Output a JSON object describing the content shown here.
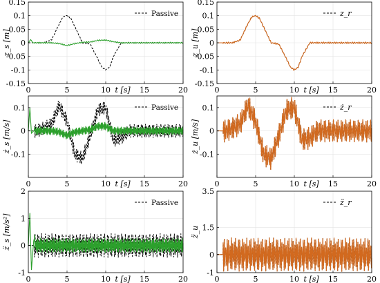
{
  "chart_data": [
    {
      "type": "line",
      "ylabel": "z_s [m]",
      "xlabel": "t [s]",
      "xlim": [
        0,
        20
      ],
      "ylim": [
        -0.15,
        0.15
      ],
      "xticks": [
        "0",
        "5",
        "10",
        "15",
        "20"
      ],
      "yticks": [
        "0.15",
        "0.1",
        "0.05",
        "0",
        "-0.05",
        "-0.1",
        "-0.15"
      ],
      "legend": "top-right",
      "series": [
        {
          "name": "Passive",
          "style": "dashed",
          "color": "#000000",
          "x": [
            0,
            1,
            2,
            3,
            4,
            4.5,
            5,
            5.5,
            6,
            7,
            8,
            9,
            9.5,
            10,
            10.5,
            11,
            12,
            13,
            14,
            15,
            16,
            17,
            18,
            19,
            20
          ],
          "values": [
            0,
            0,
            0,
            0.01,
            0.07,
            0.095,
            0.1,
            0.09,
            0.06,
            0.0,
            -0.005,
            -0.06,
            -0.09,
            -0.1,
            -0.09,
            -0.05,
            0,
            0,
            0,
            0,
            0,
            0,
            0,
            0,
            0
          ]
        },
        {
          "name": "",
          "style": "solid",
          "color": "#2ca02c",
          "x": [
            0,
            0.3,
            0.6,
            1,
            2,
            3,
            4,
            5,
            6,
            7,
            8,
            9,
            10,
            11,
            12,
            13,
            14,
            15,
            16,
            17,
            18,
            19,
            20
          ],
          "values": [
            0,
            0.012,
            0,
            0,
            0,
            0,
            -0.003,
            -0.01,
            -0.003,
            0.002,
            0.003,
            0.009,
            0.01,
            0.004,
            0,
            0,
            0,
            0,
            0,
            0,
            0,
            0,
            0
          ]
        }
      ]
    },
    {
      "type": "line",
      "ylabel": "z_u [m]",
      "xlabel": "t [s]",
      "xlim": [
        0,
        20
      ],
      "ylim": [
        -0.15,
        0.15
      ],
      "xticks": [
        "0",
        "5",
        "10",
        "15",
        "20"
      ],
      "yticks": [
        "0.15",
        "0.1",
        "0.05",
        "0",
        "-0.05",
        "-0.1",
        "-0.15"
      ],
      "legend": "top-right",
      "series": [
        {
          "name": "z_r",
          "style": "dashed",
          "color": "#000000",
          "x": [
            0,
            1,
            2,
            3,
            4,
            4.5,
            5,
            5.5,
            6,
            7,
            8,
            9,
            9.5,
            10,
            10.5,
            11,
            12,
            13,
            14,
            15,
            16,
            17,
            18,
            19,
            20
          ],
          "values": [
            0,
            0,
            0,
            0.01,
            0.07,
            0.095,
            0.1,
            0.09,
            0.06,
            0.0,
            -0.005,
            -0.06,
            -0.09,
            -0.1,
            -0.09,
            -0.05,
            0,
            0,
            0,
            0,
            0,
            0,
            0,
            0,
            0
          ]
        },
        {
          "name": "",
          "style": "solid",
          "color": "#d2691e",
          "x": [
            0,
            1,
            2,
            3,
            4,
            4.5,
            5,
            5.5,
            6,
            7,
            8,
            9,
            9.5,
            10,
            10.5,
            11,
            12,
            13,
            14,
            15,
            16,
            17,
            18,
            19,
            20
          ],
          "values": [
            0,
            0,
            0,
            0.01,
            0.07,
            0.095,
            0.1,
            0.09,
            0.06,
            0.0,
            -0.005,
            -0.06,
            -0.09,
            -0.1,
            -0.09,
            -0.05,
            0,
            0,
            0,
            0,
            0,
            0,
            0,
            0,
            0
          ]
        }
      ]
    },
    {
      "type": "line",
      "ylabel": "ż_s [m/s]",
      "xlabel": "t [s]",
      "xlim": [
        0,
        20
      ],
      "ylim": [
        -0.2,
        0.15
      ],
      "xticks": [
        "0",
        "5",
        "10",
        "15",
        "20"
      ],
      "yticks": [
        "0.1",
        "0",
        "-0.1"
      ],
      "legend": "top-right",
      "series": [
        {
          "name": "Passive",
          "style": "dashed",
          "color": "#000000",
          "x": [
            0,
            1,
            2,
            3,
            4,
            5,
            6,
            7,
            8,
            9,
            10,
            11,
            12,
            13,
            14,
            15,
            16,
            17,
            18,
            19,
            20
          ],
          "values": [
            0,
            0,
            0.01,
            0.03,
            0.11,
            0.04,
            -0.1,
            -0.12,
            -0.02,
            0.09,
            0.1,
            -0.04,
            -0.03,
            0,
            0,
            0,
            0,
            0,
            0,
            0,
            0
          ]
        },
        {
          "name": "",
          "style": "solid",
          "color": "#2ca02c",
          "x": [
            0,
            0.2,
            0.4,
            0.7,
            1,
            2,
            3,
            4,
            5,
            6,
            7,
            8,
            9,
            10,
            11,
            12,
            13,
            14,
            15,
            16,
            17,
            18,
            19,
            20
          ],
          "values": [
            0,
            0.1,
            -0.01,
            0,
            0,
            0,
            0,
            -0.005,
            -0.02,
            -0.005,
            0,
            0.005,
            0.02,
            0.02,
            0,
            0,
            0,
            0,
            0,
            0,
            0,
            0,
            0,
            0
          ]
        }
      ]
    },
    {
      "type": "line",
      "ylabel": "ż_u [m/s]",
      "xlabel": "t [s]",
      "xlim": [
        0,
        20
      ],
      "ylim": [
        -0.2,
        0.15
      ],
      "xticks": [
        "0",
        "5",
        "10",
        "15",
        "20"
      ],
      "yticks": [
        "0.1",
        "0",
        "-0.1"
      ],
      "legend": "top-right",
      "series": [
        {
          "name": "ż_r",
          "style": "dashed",
          "color": "#000000",
          "x": [
            0,
            1,
            2,
            3,
            4,
            5,
            6,
            7,
            8,
            9,
            10,
            11,
            12,
            13,
            14,
            15,
            16,
            17,
            18,
            19,
            20
          ],
          "values": [
            0,
            0,
            0.01,
            0.03,
            0.11,
            0.04,
            -0.1,
            -0.12,
            -0.02,
            0.09,
            0.1,
            -0.04,
            -0.03,
            0,
            0,
            0,
            0,
            0,
            0,
            0,
            0
          ]
        },
        {
          "name": "",
          "style": "solid",
          "color": "#d2691e",
          "x": [
            0,
            1,
            2,
            3,
            4,
            5,
            6,
            7,
            8,
            9,
            10,
            11,
            12,
            13,
            14,
            15,
            16,
            17,
            18,
            19,
            20
          ],
          "values": [
            0,
            0,
            0.01,
            0.03,
            0.11,
            0.04,
            -0.1,
            -0.12,
            -0.02,
            0.09,
            0.1,
            -0.04,
            -0.03,
            0,
            0,
            0,
            0,
            0,
            0,
            0,
            0
          ]
        }
      ]
    },
    {
      "type": "line",
      "ylabel": "z̈_s [m/s²]",
      "xlabel": "t [s]",
      "xlim": [
        0,
        20
      ],
      "ylim": [
        -1,
        2
      ],
      "xticks": [
        "0",
        "5",
        "10",
        "15",
        "20"
      ],
      "yticks": [
        "2",
        "1",
        "0",
        "-1"
      ],
      "legend": "top-right",
      "series": [
        {
          "name": "Passive",
          "style": "dashed",
          "color": "#000000",
          "x": [
            0,
            2.5,
            5,
            7.5,
            10,
            12.5,
            15,
            17.5,
            20
          ],
          "values": [
            0,
            0,
            0,
            0,
            0,
            0,
            0,
            0,
            0
          ]
        },
        {
          "name": "",
          "style": "solid",
          "color": "#2ca02c",
          "x": [
            0,
            0.2,
            0.4,
            0.7,
            1,
            5,
            10,
            15,
            20
          ],
          "values": [
            0,
            1.2,
            -0.9,
            0.2,
            0,
            0,
            0,
            0,
            0
          ]
        }
      ]
    },
    {
      "type": "line",
      "ylabel": "z̈_u",
      "xlabel": "t [s]",
      "xlim": [
        0,
        20
      ],
      "ylim": [
        -1,
        3.5
      ],
      "xticks": [
        "0",
        "5",
        "10",
        "15",
        "20"
      ],
      "yticks": [
        "3.5",
        "1.5",
        "0",
        "-1"
      ],
      "legend": "top-right",
      "series": [
        {
          "name": "z̈_r",
          "style": "dashed",
          "color": "#000000",
          "x": [
            0,
            2.5,
            5,
            7.5,
            10,
            12.5,
            15,
            17.5,
            20
          ],
          "values": [
            0,
            0,
            0,
            0,
            0,
            0,
            0,
            0,
            0
          ]
        },
        {
          "name": "",
          "style": "solid",
          "color": "#d2691e",
          "x": [
            0,
            2.5,
            5,
            7.5,
            10,
            12.5,
            15,
            17.5,
            20
          ],
          "values": [
            0,
            0,
            0,
            0,
            0,
            0,
            0,
            0,
            0
          ]
        }
      ]
    }
  ]
}
